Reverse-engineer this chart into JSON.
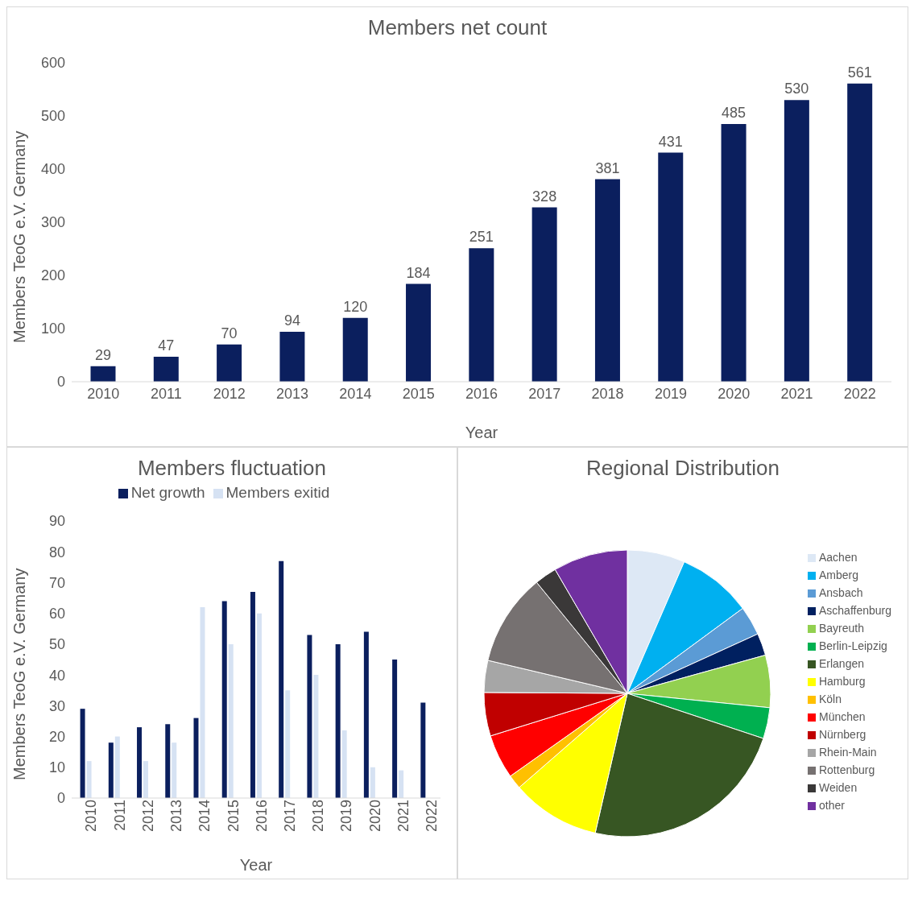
{
  "chart_data": [
    {
      "type": "bar",
      "title": "Members net count",
      "xlabel": "Year",
      "ylabel": "Members TeoG e.V. Germany",
      "categories": [
        "2010",
        "2011",
        "2012",
        "2013",
        "2014",
        "2015",
        "2016",
        "2017",
        "2018",
        "2019",
        "2020",
        "2021",
        "2022"
      ],
      "values": [
        29,
        47,
        70,
        94,
        120,
        184,
        251,
        328,
        381,
        431,
        485,
        530,
        561
      ],
      "color": "#0b1f5e",
      "ylim": [
        0,
        600
      ],
      "yticks": [
        0,
        100,
        200,
        300,
        400,
        500,
        600
      ],
      "data_labels": true,
      "legend": false
    },
    {
      "type": "bar",
      "title": "Members fluctuation",
      "xlabel": "Year",
      "ylabel": "Members TeoG e.V. Germany",
      "categories": [
        "2010",
        "2011",
        "2012",
        "2013",
        "2014",
        "2015",
        "2016",
        "2017",
        "2018",
        "2019",
        "2020",
        "2021",
        "2022"
      ],
      "series": [
        {
          "name": "Net growth",
          "color": "#0b1f5e",
          "values": [
            29,
            18,
            23,
            24,
            26,
            64,
            67,
            77,
            53,
            50,
            54,
            45,
            31
          ]
        },
        {
          "name": "Members exitid",
          "color": "#d6e2f3",
          "values": [
            12,
            20,
            12,
            18,
            62,
            50,
            60,
            35,
            40,
            22,
            10,
            9,
            null
          ]
        }
      ],
      "ylim": [
        0,
        90
      ],
      "yticks": [
        0,
        10,
        20,
        30,
        40,
        50,
        60,
        70,
        80,
        90
      ],
      "legend": "top"
    },
    {
      "type": "pie",
      "title": "Regional Distribution",
      "categories": [
        "Aachen",
        "Amberg",
        "Ansbach",
        "Aschaffenburg",
        "Bayreuth",
        "Berlin-Leipzig",
        "Erlangen",
        "Hamburg",
        "Köln",
        "München",
        "Nürnberg",
        "Rhein-Main",
        "Rottenburg",
        "Weiden",
        "other"
      ],
      "values": [
        6.5,
        8.4,
        3.3,
        2.5,
        5.9,
        3.5,
        23.5,
        10,
        1.6,
        5,
        4.9,
        3.6,
        10.4,
        2.5,
        8.4
      ],
      "colors": [
        "#dde8f5",
        "#00b0f0",
        "#5b9bd5",
        "#002060",
        "#92d050",
        "#00b050",
        "#375623",
        "#ffff00",
        "#ffc000",
        "#ff0000",
        "#c00000",
        "#a6a6a6",
        "#767171",
        "#3a3838",
        "#7030a0"
      ],
      "legend": "right"
    }
  ]
}
